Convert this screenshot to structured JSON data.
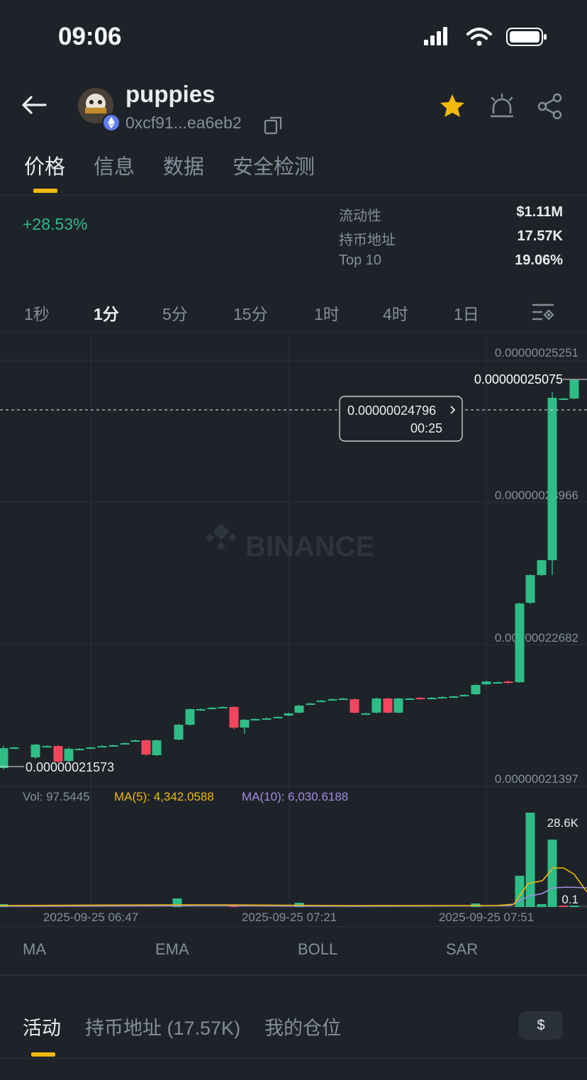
{
  "status": {
    "time": "09:06"
  },
  "token": {
    "name": "puppies",
    "address": "0xcf91...ea6eb2"
  },
  "tabs": [
    "价格",
    "信息",
    "数据",
    "安全检测"
  ],
  "price_change": "+28.53%",
  "stats": [
    {
      "label": "流动性",
      "value": "$1.11M"
    },
    {
      "label": "持币地址",
      "value": "17.57K"
    },
    {
      "label": "Top 10",
      "value": "19.06%"
    }
  ],
  "timeframes": [
    "1秒",
    "1分",
    "5分",
    "15分",
    "1时",
    "4时",
    "1日"
  ],
  "selected_timeframe": "1分",
  "chart": {
    "price_labels": [
      "0.00000025251",
      "0.00000023966",
      "0.00000022682",
      "0.00000021397"
    ],
    "last_price": "0.00000025075",
    "low_marker": "0.00000021573",
    "tooltip": {
      "price": "0.00000024796",
      "time": "00:25"
    },
    "watermark": "BINANCE",
    "vol_text": "Vol: 97.5445",
    "ma5_text": "MA(5): 4,342.0588",
    "ma10_text": "MA(10): 6,030.6188",
    "vol_max": "28.6K",
    "vol_min": "0.1",
    "time_labels": [
      "2025-09-25 06:47",
      "2025-09-25 07:21",
      "2025-09-25 07:51"
    ],
    "colors": {
      "up": "#2ebd85",
      "down": "#f6465d",
      "ma5": "#f0b90b",
      "ma10": "#a38ae2",
      "grid": "#2b3139"
    }
  },
  "indicators": [
    "MA",
    "EMA",
    "BOLL",
    "SAR"
  ],
  "bottom_tabs": [
    "活动",
    "持币地址 (17.57K)",
    "我的仓位"
  ],
  "currency_symbol": "$"
}
